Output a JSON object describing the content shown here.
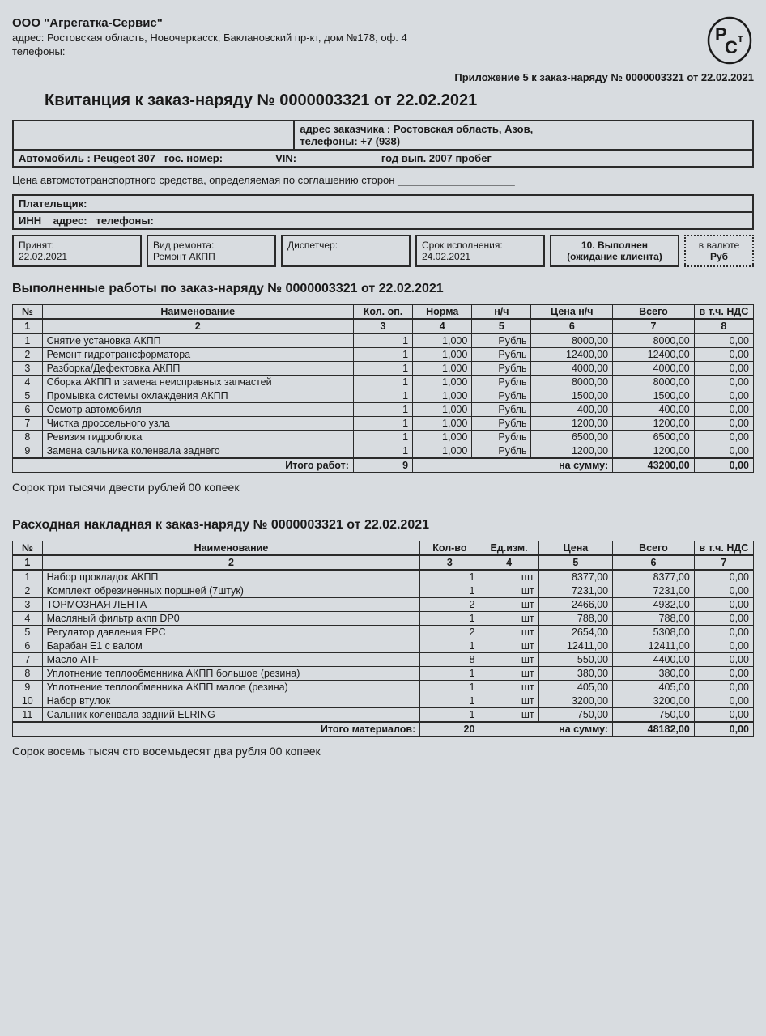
{
  "company": {
    "name": "ООО \"Агрегатка-Сервис\"",
    "address_label": "адрес:",
    "address": "Ростовская область, Новочеркасск, Баклановский пр-кт, дом №178, оф. 4",
    "phones_label": "телефоны:"
  },
  "appendix": "Приложение 5 к заказ-наряду № 0000003321 от 22.02.2021",
  "title": "Квитанция к заказ-наряду № 0000003321 от 22.02.2021",
  "customer": {
    "address_label": "адрес заказчика :",
    "address": "Ростовская область, Азов,",
    "phones_label": "телефоны:",
    "phones": "+7 (938)"
  },
  "vehicle": {
    "label": "Автомобиль :",
    "model": "Peugeot 307",
    "plate_label": "гос. номер:",
    "vin_label": "VIN:",
    "year_label": "год вып.",
    "year": "2007",
    "mileage_label": "пробег"
  },
  "price_line": "Цена автомототранспортного средства, определяемая по соглашению сторон ____________________",
  "payer": {
    "label": "Плательщик:",
    "inn": "ИНН",
    "addr": "адрес:",
    "phones": "телефоны:"
  },
  "meta": {
    "accepted_label": "Принят:",
    "accepted": "22.02.2021",
    "repair_label": "Вид ремонта:",
    "repair": "Ремонт АКПП",
    "dispatcher_label": "Диспетчер:",
    "due_label": "Срок исполнения:",
    "due": "24.02.2021",
    "status": "10. Выполнен (ожидание клиента)",
    "currency_label": "в валюте",
    "currency": "Руб"
  },
  "works": {
    "title": "Выполненные работы по заказ-наряду №  0000003321 от 22.02.2021",
    "headers": [
      "№",
      "Наименование",
      "Кол. оп.",
      "Норма",
      "н/ч",
      "Цена н/ч",
      "Всего",
      "в т.ч. НДС"
    ],
    "numhdr": [
      "1",
      "2",
      "3",
      "4",
      "5",
      "6",
      "7",
      "8"
    ],
    "rows": [
      [
        "1",
        "Снятие установка АКПП",
        "1",
        "1,000",
        "Рубль",
        "8000,00",
        "8000,00",
        "0,00"
      ],
      [
        "2",
        "Ремонт гидротрансформатора",
        "1",
        "1,000",
        "Рубль",
        "12400,00",
        "12400,00",
        "0,00"
      ],
      [
        "3",
        "Разборка/Дефектовка АКПП",
        "1",
        "1,000",
        "Рубль",
        "4000,00",
        "4000,00",
        "0,00"
      ],
      [
        "4",
        "Сборка АКПП и замена неисправных запчастей",
        "1",
        "1,000",
        "Рубль",
        "8000,00",
        "8000,00",
        "0,00"
      ],
      [
        "5",
        "Промывка системы охлаждения АКПП",
        "1",
        "1,000",
        "Рубль",
        "1500,00",
        "1500,00",
        "0,00"
      ],
      [
        "6",
        "Осмотр автомобиля",
        "1",
        "1,000",
        "Рубль",
        "400,00",
        "400,00",
        "0,00"
      ],
      [
        "7",
        "Чистка дроссельного узла",
        "1",
        "1,000",
        "Рубль",
        "1200,00",
        "1200,00",
        "0,00"
      ],
      [
        "8",
        "Ревизия гидроблока",
        "1",
        "1,000",
        "Рубль",
        "6500,00",
        "6500,00",
        "0,00"
      ],
      [
        "9",
        "Замена сальника коленвала заднего",
        "1",
        "1,000",
        "Рубль",
        "1200,00",
        "1200,00",
        "0,00"
      ]
    ],
    "total_label": "Итого работ:",
    "total_qty": "9",
    "total_sum_label": "на сумму:",
    "total_sum": "43200,00",
    "total_vat": "0,00",
    "words": "Сорок три тысячи двести рублей 00 копеек"
  },
  "materials": {
    "title": "Расходная накладная к заказ-наряду №  0000003321 от 22.02.2021",
    "headers": [
      "№",
      "Наименование",
      "Кол-во",
      "Ед.изм.",
      "Цена",
      "Всего",
      "в т.ч. НДС"
    ],
    "numhdr": [
      "1",
      "2",
      "3",
      "4",
      "5",
      "6",
      "7"
    ],
    "rows": [
      [
        "1",
        "Набор прокладок АКПП",
        "1",
        "шт",
        "8377,00",
        "8377,00",
        "0,00"
      ],
      [
        "2",
        "Комплект обрезиненных поршней (7штук)",
        "1",
        "шт",
        "7231,00",
        "7231,00",
        "0,00"
      ],
      [
        "3",
        "ТОРМОЗНАЯ ЛЕНТА",
        "2",
        "шт",
        "2466,00",
        "4932,00",
        "0,00"
      ],
      [
        "4",
        "Масляный фильтр акпп DP0",
        "1",
        "шт",
        "788,00",
        "788,00",
        "0,00"
      ],
      [
        "5",
        "Регулятор давления EPC",
        "2",
        "шт",
        "2654,00",
        "5308,00",
        "0,00"
      ],
      [
        "6",
        "Барабан E1 с валом",
        "1",
        "шт",
        "12411,00",
        "12411,00",
        "0,00"
      ],
      [
        "7",
        "Масло ATF",
        "8",
        "шт",
        "550,00",
        "4400,00",
        "0,00"
      ],
      [
        "8",
        "Уплотнение теплообменника АКПП большое (резина)",
        "1",
        "шт",
        "380,00",
        "380,00",
        "0,00"
      ],
      [
        "9",
        "Уплотнение теплообменника АКПП малое (резина)",
        "1",
        "шт",
        "405,00",
        "405,00",
        "0,00"
      ],
      [
        "10",
        "Набор втулок",
        "1",
        "шт",
        "3200,00",
        "3200,00",
        "0,00"
      ],
      [
        "11",
        "Сальник коленвала задний ELRING",
        "1",
        "шт",
        "750,00",
        "750,00",
        "0,00"
      ]
    ],
    "total_label": "Итого материалов:",
    "total_qty": "20",
    "total_sum_label": "на сумму:",
    "total_sum": "48182,00",
    "total_vat": "0,00",
    "words": "Сорок восемь тысяч сто восемьдесят два рубля 00 копеек"
  },
  "col_widths": {
    "works": [
      "4%",
      "42%",
      "8%",
      "8%",
      "8%",
      "11%",
      "11%",
      "8%"
    ],
    "materials": [
      "4%",
      "51%",
      "8%",
      "8%",
      "10%",
      "11%",
      "8%"
    ]
  }
}
